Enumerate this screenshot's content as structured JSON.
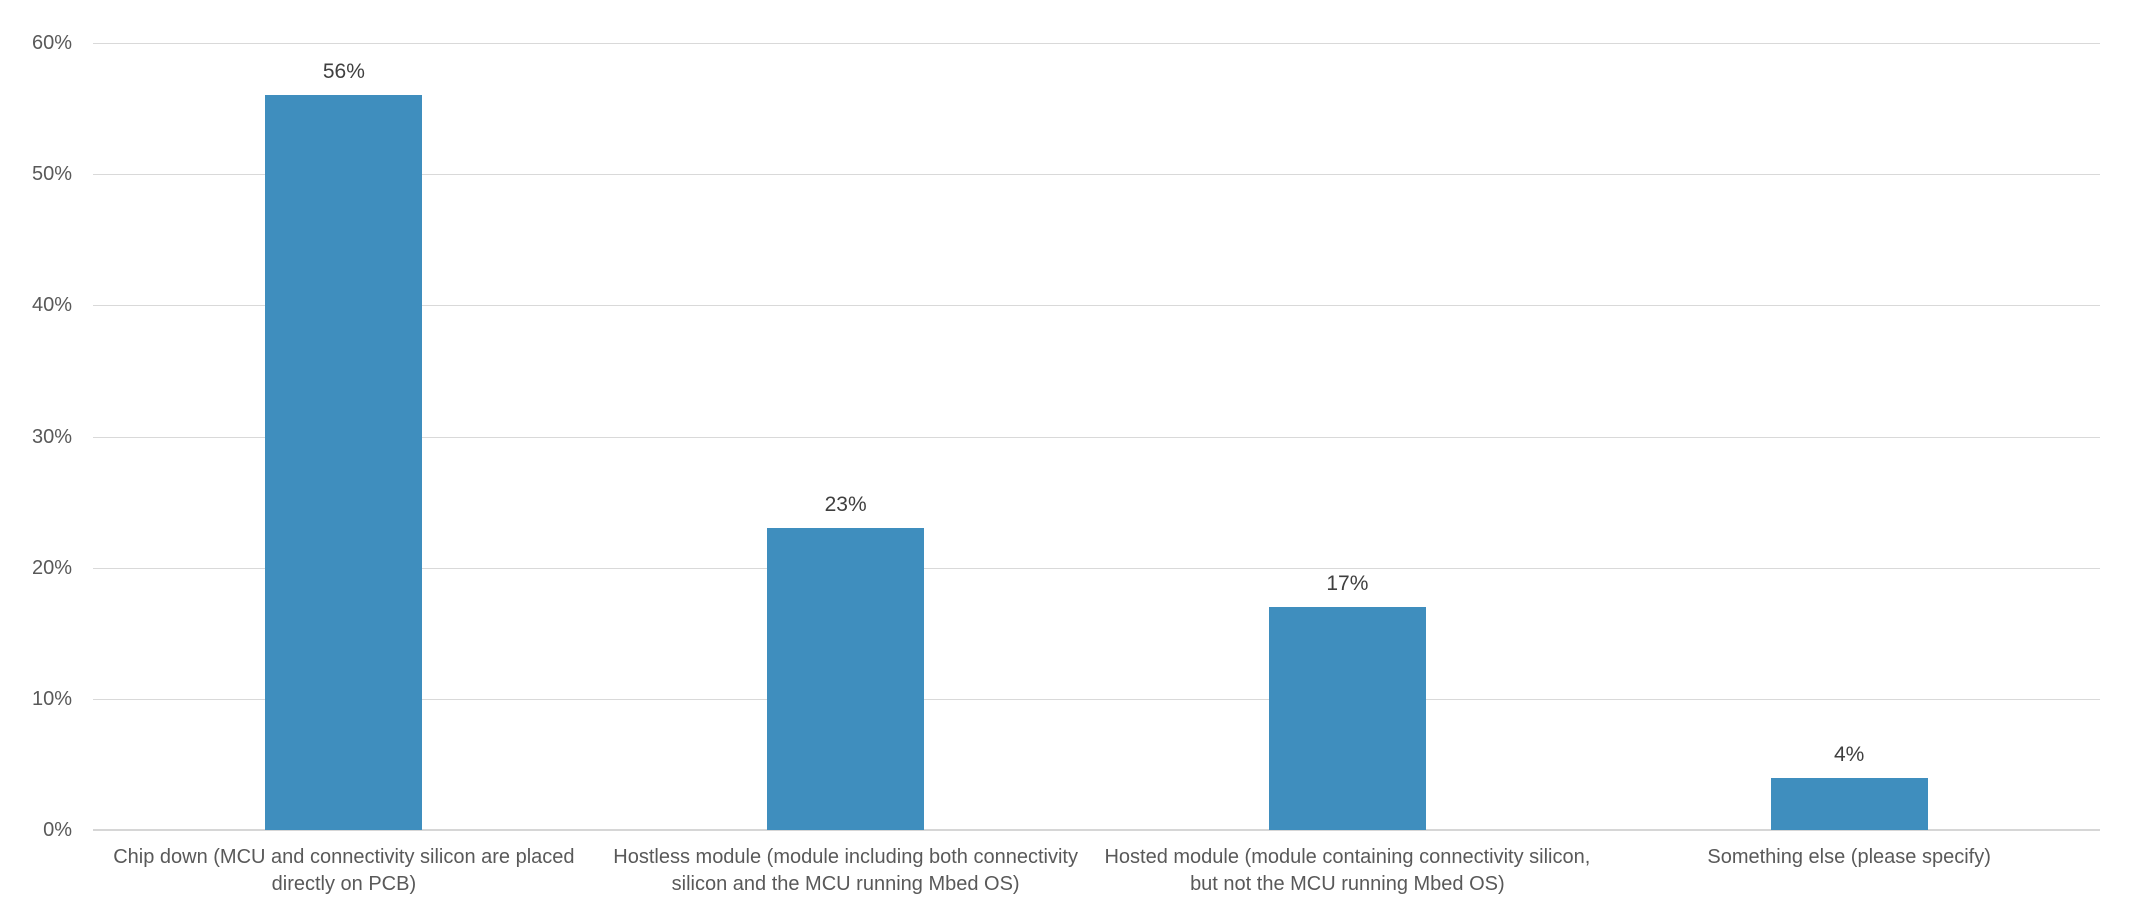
{
  "chart_data": {
    "type": "bar",
    "title": "",
    "xlabel": "",
    "ylabel": "",
    "categories": [
      "Chip down (MCU and connectivity silicon are placed directly on PCB)",
      "Hostless module (module including both connectivity silicon and the MCU running Mbed OS)",
      "Hosted module (module containing connectivity silicon, but not the MCU running Mbed OS)",
      "Something else (please specify)"
    ],
    "category_labels": [
      "Chip down (MCU and connectivity silicon are placed\ndirectly on PCB)",
      "Hostless module (module including both connectivity\nsilicon and the MCU running Mbed OS)",
      "Hosted module (module containing connectivity silicon,\nbut not the MCU running Mbed OS)",
      "Something else (please specify)"
    ],
    "values": [
      56,
      23,
      17,
      4
    ],
    "data_labels": [
      "56%",
      "23%",
      "17%",
      "4%"
    ],
    "y_ticks": [
      "0%",
      "10%",
      "20%",
      "30%",
      "40%",
      "50%",
      "60%"
    ],
    "y_tick_values": [
      0,
      10,
      20,
      30,
      40,
      50,
      60
    ],
    "ylim": [
      0,
      60
    ],
    "grid": true,
    "legend": false,
    "colors": {
      "bar": "#3F8EBE",
      "gridline": "#D9D9D9",
      "axis_line": "#D6D6D6",
      "tick_label": "#595959",
      "category_label": "#595959",
      "data_label": "#3F3F3F",
      "background": "#FFFFFF"
    }
  }
}
